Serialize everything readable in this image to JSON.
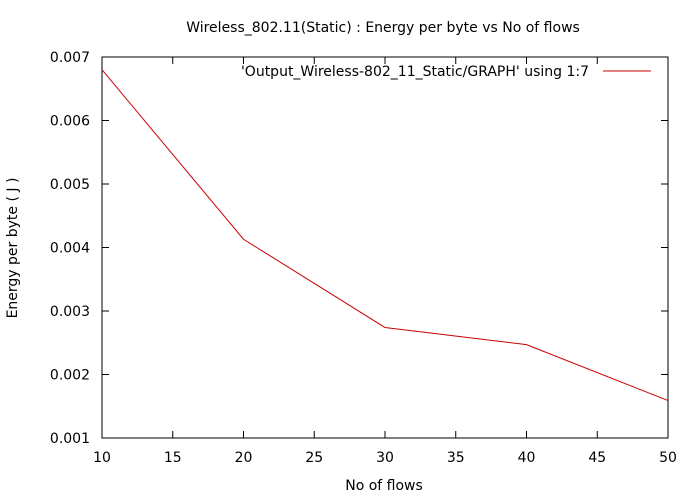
{
  "chart_data": {
    "type": "line",
    "title": "Wireless_802.11(Static) : Energy per byte vs No of flows",
    "xlabel": "No of flows",
    "ylabel": "Energy per byte ( J )",
    "xlim": [
      10,
      50
    ],
    "ylim": [
      0.001,
      0.007
    ],
    "xticks": [
      10,
      15,
      20,
      25,
      30,
      35,
      40,
      45,
      50
    ],
    "xtick_labels": [
      "10",
      "15",
      "20",
      "25",
      "30",
      "35",
      "40",
      "45",
      "50"
    ],
    "yticks": [
      0.001,
      0.002,
      0.003,
      0.004,
      0.005,
      0.006,
      0.007
    ],
    "ytick_labels": [
      "0.001",
      "0.002",
      "0.003",
      "0.004",
      "0.005",
      "0.006",
      "0.007"
    ],
    "grid": false,
    "legend_position": "top-right",
    "series": [
      {
        "name": "'Output_Wireless-802_11_Static/GRAPH' using 1:7",
        "color": "#cc0000",
        "x": [
          10,
          20,
          30,
          40,
          50
        ],
        "y": [
          0.0068,
          0.00413,
          0.00274,
          0.00247,
          0.00159
        ]
      }
    ]
  }
}
